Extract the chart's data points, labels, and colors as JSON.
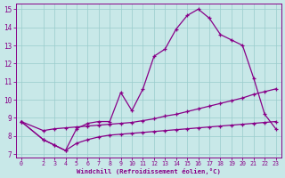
{
  "bg_color": "#c8e8e8",
  "line_color": "#880088",
  "grid_color": "#99cccc",
  "xlabel": "Windchill (Refroidissement éolien,°C)",
  "xlim": [
    -0.5,
    23.5
  ],
  "ylim": [
    6.8,
    15.3
  ],
  "yticks": [
    7,
    8,
    9,
    10,
    11,
    12,
    13,
    14,
    15
  ],
  "xticks": [
    0,
    2,
    3,
    4,
    5,
    6,
    7,
    8,
    9,
    10,
    11,
    12,
    13,
    14,
    15,
    16,
    17,
    18,
    19,
    20,
    21,
    22,
    23
  ],
  "curve_main_x": [
    0,
    2,
    3,
    4,
    5,
    6,
    7,
    8,
    9,
    10,
    11,
    12,
    13,
    14,
    15,
    16,
    17,
    18,
    19,
    20,
    21,
    22,
    23
  ],
  "curve_main_y": [
    8.8,
    7.8,
    7.5,
    7.2,
    8.4,
    8.7,
    8.8,
    8.8,
    10.4,
    9.4,
    10.6,
    12.4,
    12.8,
    13.9,
    14.65,
    15.0,
    14.5,
    13.6,
    13.3,
    13.0,
    11.2,
    9.2,
    8.4
  ],
  "curve_mid_x": [
    0,
    2,
    3,
    4,
    5,
    6,
    7,
    8,
    9,
    10,
    11,
    12,
    13,
    14,
    15,
    16,
    17,
    18,
    19,
    20,
    21,
    22,
    23
  ],
  "curve_mid_y": [
    8.8,
    8.3,
    8.4,
    8.45,
    8.5,
    8.55,
    8.6,
    8.65,
    8.7,
    8.75,
    8.85,
    8.95,
    9.1,
    9.2,
    9.35,
    9.5,
    9.65,
    9.8,
    9.95,
    10.1,
    10.3,
    10.45,
    10.6
  ],
  "curve_low_x": [
    0,
    2,
    3,
    4,
    5,
    6,
    7,
    8,
    9,
    10,
    11,
    12,
    13,
    14,
    15,
    16,
    17,
    18,
    19,
    20,
    21,
    22,
    23
  ],
  "curve_low_y": [
    8.8,
    7.8,
    7.5,
    7.2,
    7.6,
    7.8,
    7.95,
    8.05,
    8.1,
    8.15,
    8.2,
    8.25,
    8.3,
    8.35,
    8.4,
    8.45,
    8.5,
    8.55,
    8.6,
    8.65,
    8.7,
    8.75,
    8.8
  ]
}
